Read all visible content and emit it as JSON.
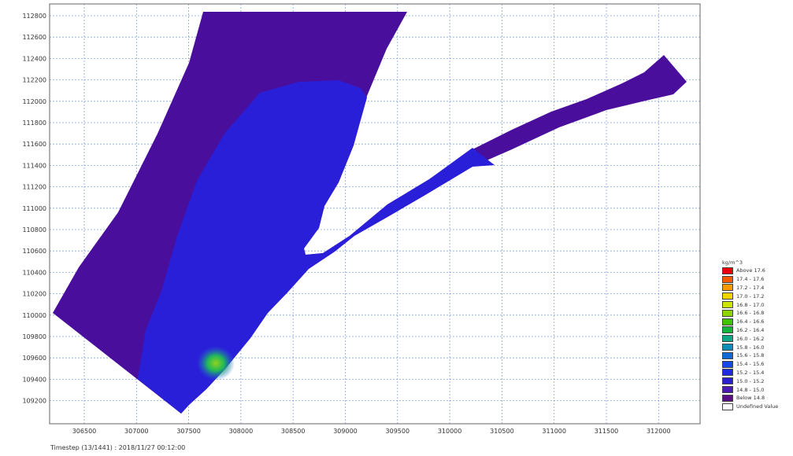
{
  "map": {
    "y_ticks": [
      "112800",
      "112600",
      "112400",
      "112200",
      "112000",
      "111800",
      "111600",
      "111400",
      "111200",
      "111000",
      "110800",
      "110600",
      "110400",
      "110200",
      "110000",
      "109800",
      "109600",
      "109400",
      "109200"
    ],
    "x_ticks": [
      "306500",
      "307000",
      "307500",
      "308000",
      "308500",
      "309000",
      "309500",
      "310000",
      "310500",
      "311000",
      "311500",
      "312000"
    ],
    "colors": {
      "outer_domain": "#4a0e9c",
      "inner_blue": "#2a1fd8",
      "hotspot_blue": "#1f6ad6",
      "hotspot_green": "#1fb85a",
      "hotspot_core": "#8fd21f",
      "grid": "#7fa6e0"
    }
  },
  "status": {
    "text": "Timestep (13/1441) : 2018/11/27 00:12:00"
  },
  "legend": {
    "title": "kg/m^3",
    "items": [
      {
        "label": "Above 17.6",
        "color": "#e8000a"
      },
      {
        "label": "17.4 - 17.6",
        "color": "#f55a00"
      },
      {
        "label": "17.2 - 17.4",
        "color": "#f79a00"
      },
      {
        "label": "17.0 - 17.2",
        "color": "#f2d600"
      },
      {
        "label": "16.8 - 17.0",
        "color": "#cde600"
      },
      {
        "label": "16.6 - 16.8",
        "color": "#8ed400"
      },
      {
        "label": "16.4 - 16.6",
        "color": "#3fc200"
      },
      {
        "label": "16.2 - 16.4",
        "color": "#12b43c"
      },
      {
        "label": "16.0 - 16.2",
        "color": "#0fa98a"
      },
      {
        "label": "15.8 - 16.0",
        "color": "#0f8fb8"
      },
      {
        "label": "15.6 - 15.8",
        "color": "#0f6ad8"
      },
      {
        "label": "15.4 - 15.6",
        "color": "#1748e8"
      },
      {
        "label": "15.2 - 15.4",
        "color": "#1e2ae0"
      },
      {
        "label": "15.0 - 15.2",
        "color": "#2a1fcf"
      },
      {
        "label": "14.8 - 15.0",
        "color": "#4a1bb0"
      },
      {
        "label": "Below 14.8",
        "color": "#5a0f86"
      },
      {
        "label": "Undefined Value",
        "color": "#ffffff"
      }
    ]
  }
}
